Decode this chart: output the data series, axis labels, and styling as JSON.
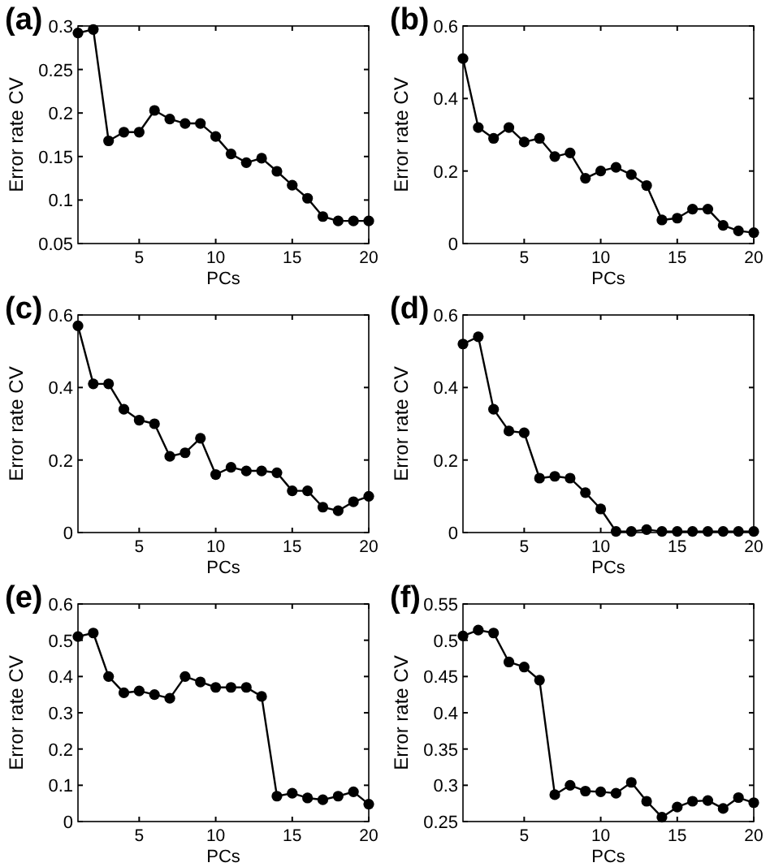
{
  "chart_data": [
    {
      "type": "line",
      "title": "(a)",
      "xlabel": "PCs",
      "ylabel": "Error rate CV",
      "x": [
        1,
        2,
        3,
        4,
        5,
        6,
        7,
        8,
        9,
        10,
        11,
        12,
        13,
        14,
        15,
        16,
        17,
        18,
        19,
        20
      ],
      "xlim": [
        1,
        20
      ],
      "xticks": [
        5,
        10,
        15,
        20
      ],
      "ylim": [
        0.05,
        0.3
      ],
      "yticks": [
        0.05,
        0.1,
        0.15,
        0.2,
        0.25,
        0.3
      ],
      "marker": "circle",
      "line_style": "solid",
      "grid": false,
      "series": [
        {
          "color": "#000000",
          "values": [
            0.292,
            0.296,
            0.168,
            0.178,
            0.178,
            0.203,
            0.193,
            0.188,
            0.188,
            0.173,
            0.153,
            0.143,
            0.148,
            0.133,
            0.117,
            0.102,
            0.081,
            0.076,
            0.076,
            0.076
          ]
        }
      ]
    },
    {
      "type": "line",
      "title": "(b)",
      "xlabel": "PCs",
      "ylabel": "Error rate CV",
      "x": [
        1,
        2,
        3,
        4,
        5,
        6,
        7,
        8,
        9,
        10,
        11,
        12,
        13,
        14,
        15,
        16,
        17,
        18,
        19,
        20
      ],
      "xlim": [
        1,
        20
      ],
      "xticks": [
        5,
        10,
        15,
        20
      ],
      "ylim": [
        0,
        0.6
      ],
      "yticks": [
        0,
        0.2,
        0.4,
        0.6
      ],
      "marker": "circle",
      "line_style": "solid",
      "grid": false,
      "series": [
        {
          "color": "#000000",
          "values": [
            0.51,
            0.32,
            0.29,
            0.32,
            0.28,
            0.29,
            0.24,
            0.25,
            0.18,
            0.2,
            0.21,
            0.19,
            0.16,
            0.065,
            0.07,
            0.095,
            0.095,
            0.05,
            0.035,
            0.03
          ]
        }
      ]
    },
    {
      "type": "line",
      "title": "(c)",
      "xlabel": "PCs",
      "ylabel": "Error rate CV",
      "x": [
        1,
        2,
        3,
        4,
        5,
        6,
        7,
        8,
        9,
        10,
        11,
        12,
        13,
        14,
        15,
        16,
        17,
        18,
        19,
        20
      ],
      "xlim": [
        1,
        20
      ],
      "xticks": [
        5,
        10,
        15,
        20
      ],
      "ylim": [
        0,
        0.6
      ],
      "yticks": [
        0,
        0.2,
        0.4,
        0.6
      ],
      "marker": "circle",
      "line_style": "solid",
      "grid": false,
      "series": [
        {
          "color": "#000000",
          "values": [
            0.57,
            0.41,
            0.41,
            0.34,
            0.31,
            0.3,
            0.21,
            0.22,
            0.26,
            0.16,
            0.18,
            0.17,
            0.17,
            0.165,
            0.115,
            0.115,
            0.07,
            0.06,
            0.085,
            0.1
          ]
        }
      ]
    },
    {
      "type": "line",
      "title": "(d)",
      "xlabel": "PCs",
      "ylabel": "Error rate CV",
      "x": [
        1,
        2,
        3,
        4,
        5,
        6,
        7,
        8,
        9,
        10,
        11,
        12,
        13,
        14,
        15,
        16,
        17,
        18,
        19,
        20
      ],
      "xlim": [
        1,
        20
      ],
      "xticks": [
        5,
        10,
        15,
        20
      ],
      "ylim": [
        0,
        0.6
      ],
      "yticks": [
        0,
        0.2,
        0.4,
        0.6
      ],
      "marker": "circle",
      "line_style": "solid",
      "grid": false,
      "series": [
        {
          "color": "#000000",
          "values": [
            0.52,
            0.54,
            0.34,
            0.28,
            0.275,
            0.15,
            0.155,
            0.15,
            0.11,
            0.065,
            0.003,
            0.003,
            0.008,
            0.003,
            0.003,
            0.003,
            0.003,
            0.003,
            0.003,
            0.003
          ]
        }
      ]
    },
    {
      "type": "line",
      "title": "(e)",
      "xlabel": "PCs",
      "ylabel": "Error rate CV",
      "x": [
        1,
        2,
        3,
        4,
        5,
        6,
        7,
        8,
        9,
        10,
        11,
        12,
        13,
        14,
        15,
        16,
        17,
        18,
        19,
        20
      ],
      "xlim": [
        1,
        20
      ],
      "xticks": [
        5,
        10,
        15,
        20
      ],
      "ylim": [
        0,
        0.6
      ],
      "yticks": [
        0,
        0.1,
        0.2,
        0.3,
        0.4,
        0.5,
        0.6
      ],
      "marker": "circle",
      "line_style": "solid",
      "grid": false,
      "series": [
        {
          "color": "#000000",
          "values": [
            0.51,
            0.52,
            0.4,
            0.355,
            0.36,
            0.35,
            0.34,
            0.4,
            0.385,
            0.37,
            0.37,
            0.37,
            0.345,
            0.07,
            0.078,
            0.065,
            0.06,
            0.07,
            0.082,
            0.048
          ]
        }
      ]
    },
    {
      "type": "line",
      "title": "(f)",
      "xlabel": "PCs",
      "ylabel": "Error rate CV",
      "x": [
        1,
        2,
        3,
        4,
        5,
        6,
        7,
        8,
        9,
        10,
        11,
        12,
        13,
        14,
        15,
        16,
        17,
        18,
        19,
        20
      ],
      "xlim": [
        1,
        20
      ],
      "xticks": [
        5,
        10,
        15,
        20
      ],
      "ylim": [
        0.25,
        0.55
      ],
      "yticks": [
        0.25,
        0.3,
        0.35,
        0.4,
        0.45,
        0.5,
        0.55
      ],
      "marker": "circle",
      "line_style": "solid",
      "grid": false,
      "series": [
        {
          "color": "#000000",
          "values": [
            0.506,
            0.514,
            0.51,
            0.47,
            0.463,
            0.445,
            0.287,
            0.3,
            0.292,
            0.291,
            0.289,
            0.304,
            0.278,
            0.256,
            0.27,
            0.278,
            0.279,
            0.268,
            0.283,
            0.276
          ]
        }
      ]
    }
  ]
}
